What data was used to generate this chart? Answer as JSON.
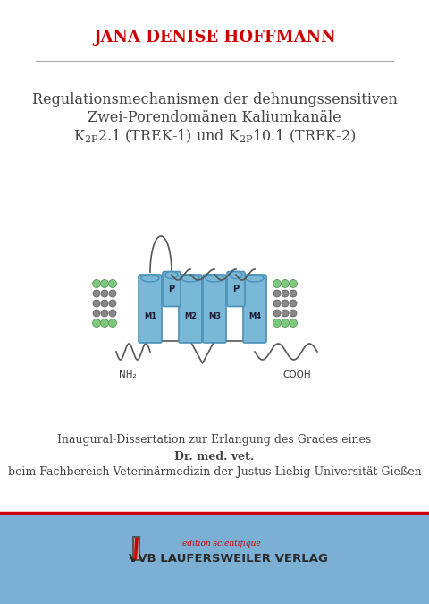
{
  "author": "JANA DENISE HOFFMANN",
  "author_color": "#cc0000",
  "author_fontsize": 13,
  "line_color": "#aaaaaa",
  "title_line1": "Regulationsmechanismen der dehnungssensitiven",
  "title_line2": "Zwei-Porendomänen Kaliumkanäle",
  "title_color": "#444444",
  "title_fontsize": 11.5,
  "dissertation_line1": "Inaugural-Dissertation zur Erlangung des Grades eines",
  "dissertation_line2": "Dr. med. vet.",
  "dissertation_line3": "beim Fachbereich Veterinärmedizin der Justus-Liebig-Universität Gießen",
  "dissertation_color": "#444444",
  "dissertation_fontsize": 9,
  "footer_bg_color": "#7bafd4",
  "footer_line_color": "#cc0000",
  "footer_text": "VVB LAUFERSWEILER VERLAG",
  "footer_text_color": "#2a2a2a",
  "edition_text": "edition scientifique",
  "edition_color": "#cc0000",
  "background_color": "#ffffff",
  "channel_color": "#7ab8d8",
  "channel_edge": "#4a90b8",
  "lipid_color": "#7dc87d",
  "lipid_dark": "#3a7a3a",
  "loop_color": "#555555"
}
